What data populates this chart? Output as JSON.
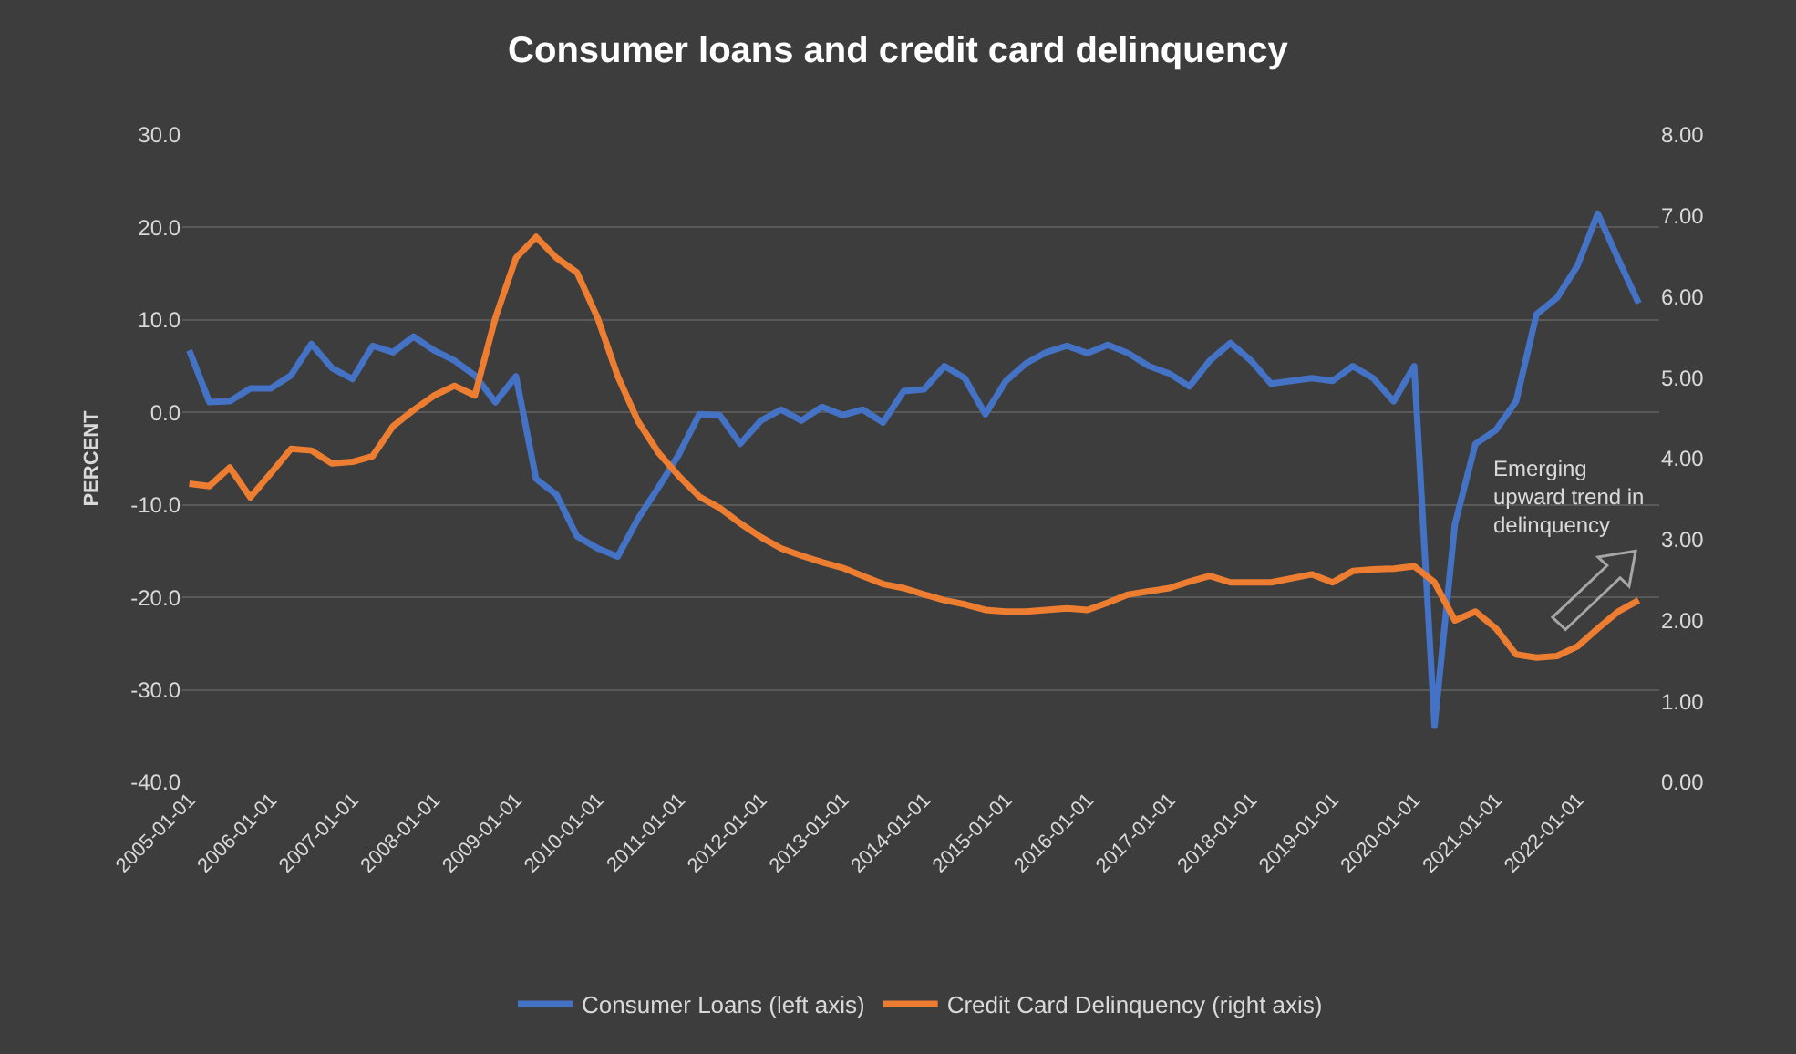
{
  "chart_data": {
    "type": "line",
    "title": "Consumer loans and credit card delinquency",
    "ylabel": "PERCENT",
    "x": [
      "2005-01-01",
      "2005-04-01",
      "2005-07-01",
      "2005-10-01",
      "2006-01-01",
      "2006-04-01",
      "2006-07-01",
      "2006-10-01",
      "2007-01-01",
      "2007-04-01",
      "2007-07-01",
      "2007-10-01",
      "2008-01-01",
      "2008-04-01",
      "2008-07-01",
      "2008-10-01",
      "2009-01-01",
      "2009-04-01",
      "2009-07-01",
      "2009-10-01",
      "2010-01-01",
      "2010-04-01",
      "2010-07-01",
      "2010-10-01",
      "2011-01-01",
      "2011-04-01",
      "2011-07-01",
      "2011-10-01",
      "2012-01-01",
      "2012-04-01",
      "2012-07-01",
      "2012-10-01",
      "2013-01-01",
      "2013-04-01",
      "2013-07-01",
      "2013-10-01",
      "2014-01-01",
      "2014-04-01",
      "2014-07-01",
      "2014-10-01",
      "2015-01-01",
      "2015-04-01",
      "2015-07-01",
      "2015-10-01",
      "2016-01-01",
      "2016-04-01",
      "2016-07-01",
      "2016-10-01",
      "2017-01-01",
      "2017-04-01",
      "2017-07-01",
      "2017-10-01",
      "2018-01-01",
      "2018-04-01",
      "2018-07-01",
      "2018-10-01",
      "2019-01-01",
      "2019-04-01",
      "2019-07-01",
      "2019-10-01",
      "2020-01-01",
      "2020-04-01",
      "2020-07-01",
      "2020-10-01",
      "2021-01-01",
      "2021-04-01",
      "2021-07-01",
      "2021-10-01",
      "2022-01-01",
      "2022-04-01",
      "2022-07-01",
      "2022-10-01"
    ],
    "series": [
      {
        "name": "Consumer Loans (left axis)",
        "color": "#4472c4",
        "values": [
          6.7,
          1.1,
          1.2,
          2.6,
          2.6,
          4.0,
          7.4,
          4.8,
          3.6,
          7.2,
          6.5,
          8.2,
          6.7,
          5.6,
          4.0,
          1.1,
          3.9,
          -7.2,
          -8.9,
          -13.4,
          -14.7,
          -15.6,
          -11.5,
          -8.1,
          -4.5,
          -0.2,
          -0.3,
          -3.4,
          -0.9,
          0.3,
          -0.9,
          0.6,
          -0.3,
          0.3,
          -1.1,
          2.3,
          2.5,
          5.0,
          3.7,
          -0.2,
          3.4,
          5.3,
          6.5,
          7.2,
          6.4,
          7.3,
          6.4,
          5.0,
          4.2,
          2.8,
          5.6,
          7.5,
          5.6,
          3.1,
          3.4,
          3.7,
          3.4,
          5.0,
          3.7,
          1.2,
          5.0,
          -33.9,
          -12.1,
          -3.4,
          -1.9,
          1.2,
          10.6,
          12.4,
          15.9,
          21.5,
          16.6,
          11.8
        ]
      },
      {
        "name": "Credit Card Delinquency (right axis)",
        "color": "#ed7d31",
        "axis": "y2",
        "values": [
          3.69,
          3.66,
          3.89,
          3.52,
          3.82,
          4.12,
          4.1,
          3.94,
          3.96,
          4.03,
          4.4,
          4.6,
          4.78,
          4.9,
          4.78,
          5.74,
          6.48,
          6.74,
          6.48,
          6.3,
          5.74,
          5.02,
          4.46,
          4.07,
          3.78,
          3.53,
          3.39,
          3.2,
          3.03,
          2.89,
          2.8,
          2.72,
          2.65,
          2.55,
          2.45,
          2.4,
          2.32,
          2.25,
          2.2,
          2.13,
          2.11,
          2.11,
          2.13,
          2.15,
          2.13,
          2.22,
          2.32,
          2.36,
          2.4,
          2.48,
          2.55,
          2.47,
          2.47,
          2.47,
          2.52,
          2.57,
          2.47,
          2.61,
          2.63,
          2.64,
          2.67,
          2.47,
          2.0,
          2.11,
          1.9,
          1.58,
          1.54,
          1.56,
          1.68,
          1.9,
          2.11,
          2.25
        ]
      }
    ],
    "xlim": [
      "2004-12-01",
      "2023-01-01"
    ],
    "xticks": [
      {
        "value": "2005-01-01",
        "label": "2005-01-01"
      },
      {
        "value": "2006-01-01",
        "label": "2006-01-01"
      },
      {
        "value": "2007-01-01",
        "label": "2007-01-01"
      },
      {
        "value": "2008-01-01",
        "label": "2008-01-01"
      },
      {
        "value": "2009-01-01",
        "label": "2009-01-01"
      },
      {
        "value": "2010-01-01",
        "label": "2010-01-01"
      },
      {
        "value": "2011-01-01",
        "label": "2011-01-01"
      },
      {
        "value": "2012-01-01",
        "label": "2012-01-01"
      },
      {
        "value": "2013-01-01",
        "label": "2013-01-01"
      },
      {
        "value": "2014-01-01",
        "label": "2014-01-01"
      },
      {
        "value": "2015-01-01",
        "label": "2015-01-01"
      },
      {
        "value": "2016-01-01",
        "label": "2016-01-01"
      },
      {
        "value": "2017-01-01",
        "label": "2017-01-01"
      },
      {
        "value": "2018-01-01",
        "label": "2018-01-01"
      },
      {
        "value": "2019-01-01",
        "label": "2019-01-01"
      },
      {
        "value": "2020-01-01",
        "label": "2020-01-01"
      },
      {
        "value": "2021-01-01",
        "label": "2021-01-01"
      },
      {
        "value": "2022-01-01",
        "label": "2022-01-01"
      }
    ],
    "ylim": [
      -40,
      30
    ],
    "yticks": [
      {
        "value": 30,
        "label": "30.0"
      },
      {
        "value": 20,
        "label": "20.0"
      },
      {
        "value": 10,
        "label": "10.0"
      },
      {
        "value": 0,
        "label": "0.0"
      },
      {
        "value": -10,
        "label": "-10.0"
      },
      {
        "value": -20,
        "label": "-20.0"
      },
      {
        "value": -30,
        "label": "-30.0"
      },
      {
        "value": -40,
        "label": "-40.0"
      }
    ],
    "y2lim": [
      0,
      8
    ],
    "y2ticks": [
      {
        "value": 8,
        "label": "8.00"
      },
      {
        "value": 7,
        "label": "7.00"
      },
      {
        "value": 6,
        "label": "6.00"
      },
      {
        "value": 5,
        "label": "5.00"
      },
      {
        "value": 4,
        "label": "4.00"
      },
      {
        "value": 3,
        "label": "3.00"
      },
      {
        "value": 2,
        "label": "2.00"
      },
      {
        "value": 1,
        "label": "1.00"
      },
      {
        "value": 0,
        "label": "0.00"
      }
    ],
    "grid": "y",
    "legend": "bottom",
    "line_style": "solid",
    "annotations": [
      "Emerging\nupward trend in\ndelinquency"
    ]
  }
}
